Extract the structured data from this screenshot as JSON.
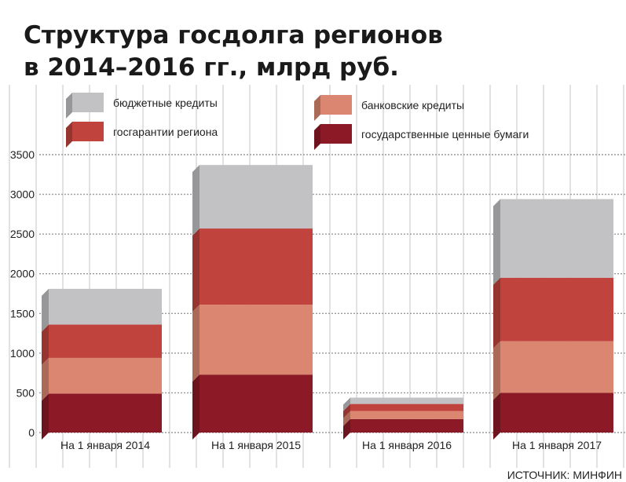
{
  "chart_data": {
    "type": "bar",
    "stacked": true,
    "title": [
      "Структура госдолга регионов",
      "в 2014–2016 гг., млрд руб."
    ],
    "categories": [
      "На 1 января 2014",
      "На 1 января 2015",
      "На 1 января 2016",
      "На 1 января 2017"
    ],
    "series": [
      {
        "name": "государственные ценные бумаги",
        "color": "#8c1a26",
        "values": [
          490,
          730,
          170,
          500
        ]
      },
      {
        "name": "банковские кредиты",
        "color": "#db8670",
        "values": [
          450,
          880,
          100,
          650
        ]
      },
      {
        "name": "госгарантии региона",
        "color": "#c0433e",
        "values": [
          420,
          960,
          90,
          800
        ]
      },
      {
        "name": "бюджетные кредиты",
        "color": "#c2c2c4",
        "values": [
          450,
          800,
          80,
          990
        ]
      }
    ],
    "legend_order": [
      3,
      1,
      2,
      0
    ],
    "y_ticks": [
      "0",
      "500",
      "1000",
      "1500",
      "2000",
      "2500",
      "3000",
      "3500"
    ],
    "ylim": [
      0,
      3500
    ],
    "grid": true,
    "source": "ИСТОЧНИК: МИНФИН"
  }
}
